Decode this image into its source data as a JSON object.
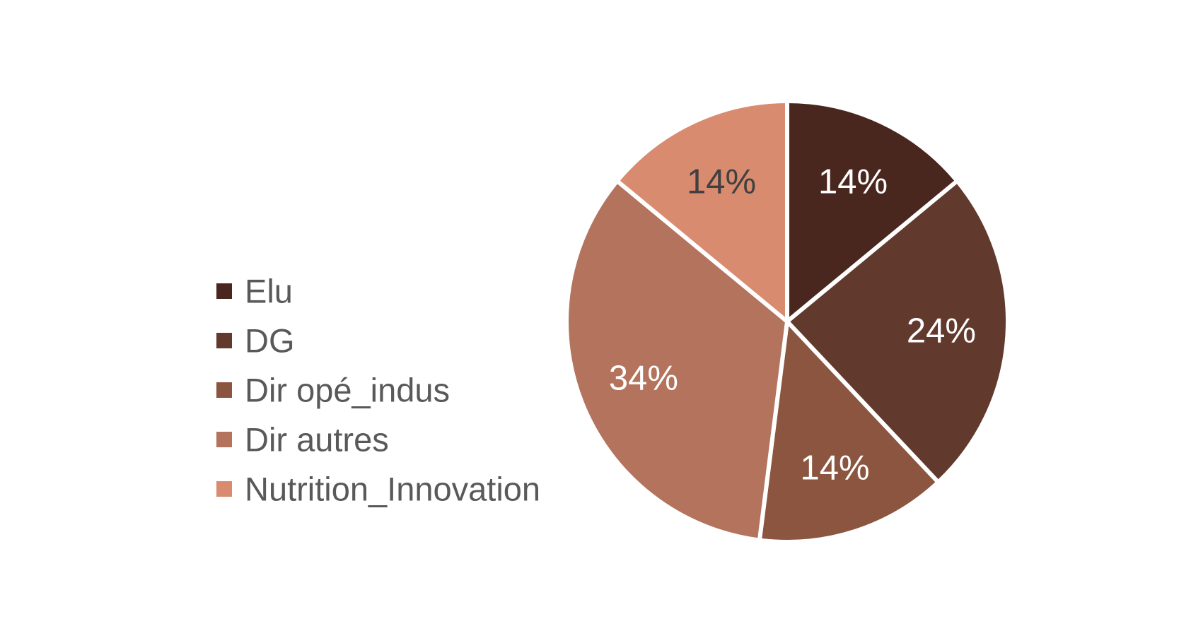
{
  "chart_data": {
    "type": "pie",
    "categories": [
      "Elu",
      "DG",
      "Dir opé_indus",
      "Dir autres",
      "Nutrition_Innovation"
    ],
    "values": [
      14,
      24,
      14,
      34,
      14
    ],
    "labels": [
      "14%",
      "24%",
      "14%",
      "34%",
      "14%"
    ],
    "colors": [
      "#4a271e",
      "#623a2d",
      "#8b5540",
      "#b3735c",
      "#d98b6f"
    ],
    "label_colors": [
      "#ffffff",
      "#ffffff",
      "#ffffff",
      "#ffffff",
      "#404040"
    ],
    "legend_position": "left",
    "title": ""
  }
}
